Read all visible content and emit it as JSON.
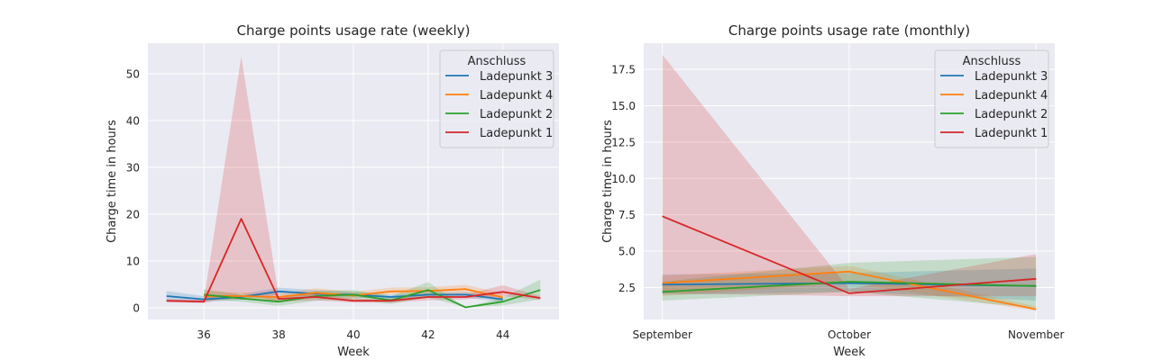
{
  "colors": {
    "plot_bg": "#eaeaf2",
    "grid": "#ffffff",
    "series": [
      "#1f77b4",
      "#ff7f0e",
      "#2ca02c",
      "#d62728"
    ]
  },
  "chart_data": [
    {
      "type": "line",
      "title": "Charge points usage rate (weekly)",
      "xlabel": "Week",
      "ylabel": "Charge time in hours",
      "xlim": [
        34.5,
        45.5
      ],
      "ylim": [
        -2.5,
        56.5
      ],
      "xticks": [
        36,
        38,
        40,
        42,
        44
      ],
      "xtick_labels": [
        "36",
        "38",
        "40",
        "42",
        "44"
      ],
      "yticks": [
        0,
        10,
        20,
        30,
        40,
        50
      ],
      "ytick_labels": [
        "0",
        "10",
        "20",
        "30",
        "40",
        "50"
      ],
      "grid": true,
      "legend": {
        "title": "Anschluss",
        "position": "top-right"
      },
      "series": [
        {
          "name": "Ladepunkt 3",
          "x": [
            35,
            36,
            37,
            38,
            39,
            40,
            41,
            42,
            43,
            44
          ],
          "y": [
            2.5,
            1.8,
            2.3,
            3.5,
            3.0,
            2.8,
            2.3,
            2.8,
            2.8,
            1.8
          ],
          "lo": [
            1.3,
            1.2,
            1.7,
            2.8,
            2.2,
            2.2,
            1.8,
            2.2,
            2.2,
            1.2
          ],
          "hi": [
            3.6,
            2.5,
            2.9,
            4.3,
            3.8,
            3.4,
            2.8,
            3.3,
            3.4,
            2.4
          ]
        },
        {
          "name": "Ladepunkt 4",
          "x": [
            36,
            37,
            38,
            39,
            40,
            41,
            42,
            43,
            44
          ],
          "y": [
            2.5,
            2.5,
            2.3,
            3.2,
            2.6,
            3.5,
            3.6,
            4.0,
            2.2
          ],
          "lo": [
            1.5,
            1.8,
            1.6,
            2.4,
            1.9,
            2.9,
            2.8,
            3.0,
            1.4
          ],
          "hi": [
            3.6,
            3.2,
            3.0,
            4.2,
            3.4,
            4.3,
            4.4,
            4.9,
            3.1
          ]
        },
        {
          "name": "Ladepunkt 2",
          "x": [
            36,
            37,
            38,
            39,
            40,
            41,
            42,
            43,
            44,
            45
          ],
          "y": [
            2.8,
            2.0,
            1.3,
            2.5,
            2.8,
            1.6,
            3.8,
            0.1,
            1.3,
            3.8
          ],
          "lo": [
            1.8,
            1.3,
            0.4,
            1.5,
            1.8,
            0.8,
            2.2,
            0.1,
            0.5,
            1.8
          ],
          "hi": [
            4.0,
            2.8,
            2.3,
            3.6,
            3.8,
            2.5,
            5.5,
            0.1,
            2.2,
            6.0
          ]
        },
        {
          "name": "Ladepunkt 1",
          "x": [
            35,
            36,
            37,
            38,
            39,
            40,
            41,
            42,
            43,
            44,
            45
          ],
          "y": [
            1.5,
            1.3,
            19.0,
            1.9,
            2.3,
            1.5,
            1.5,
            2.3,
            2.3,
            3.4,
            2.1
          ],
          "lo": [
            1.2,
            1.0,
            3.0,
            1.3,
            1.6,
            1.1,
            1.1,
            1.6,
            1.8,
            2.5,
            1.7
          ],
          "hi": [
            1.8,
            1.7,
            53.7,
            2.6,
            3.0,
            1.9,
            1.9,
            3.0,
            2.9,
            4.8,
            2.5
          ]
        }
      ]
    },
    {
      "type": "line",
      "title": "Charge points usage rate (monthly)",
      "xlabel": "Week",
      "ylabel": "Charge time in hours",
      "xlim": [
        -0.1,
        2.1
      ],
      "ylim": [
        0.3,
        19.3
      ],
      "xticks": [
        0,
        1,
        2
      ],
      "xtick_labels": [
        "September",
        "October",
        "November"
      ],
      "yticks": [
        2.5,
        5.0,
        7.5,
        10.0,
        12.5,
        15.0,
        17.5
      ],
      "ytick_labels": [
        "2.5",
        "5.0",
        "7.5",
        "10.0",
        "12.5",
        "15.0",
        "17.5"
      ],
      "grid": true,
      "legend": {
        "title": "Anschluss",
        "position": "top-right"
      },
      "series": [
        {
          "name": "Ladepunkt 3",
          "x": [
            0,
            1,
            2
          ],
          "y": [
            2.7,
            2.8,
            2.6
          ],
          "lo": [
            2.0,
            2.2,
            1.6
          ],
          "hi": [
            3.4,
            3.5,
            3.8
          ]
        },
        {
          "name": "Ladepunkt 4",
          "x": [
            0,
            1,
            2
          ],
          "y": [
            2.8,
            3.6,
            1.0
          ],
          "lo": [
            1.9,
            2.8,
            0.9
          ],
          "hi": [
            3.3,
            4.0,
            1.2
          ]
        },
        {
          "name": "Ladepunkt 2",
          "x": [
            0,
            1,
            2
          ],
          "y": [
            2.2,
            2.9,
            2.6
          ],
          "lo": [
            1.6,
            2.2,
            1.1
          ],
          "hi": [
            2.9,
            4.2,
            4.6
          ]
        },
        {
          "name": "Ladepunkt 1",
          "x": [
            0,
            1,
            2
          ],
          "y": [
            7.4,
            2.1,
            3.1
          ],
          "lo": [
            2.1,
            1.9,
            1.9
          ],
          "hi": [
            18.5,
            2.4,
            4.8
          ]
        }
      ]
    }
  ]
}
